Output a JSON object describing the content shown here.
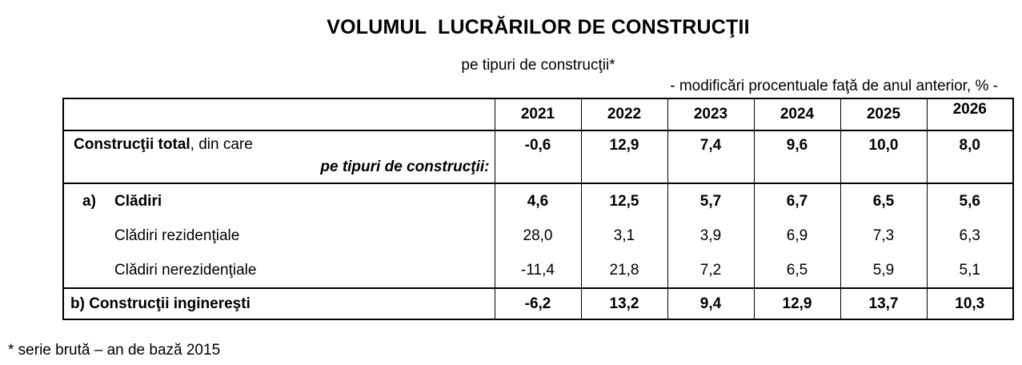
{
  "header": {
    "title": "VOLUMUL  LUCRĂRILOR DE CONSTRUCŢII",
    "subtitle": "pe tipuri de construcţii*",
    "unit_note": "- modificări procentuale faţă de anul anterior, % -"
  },
  "table": {
    "columns": [
      "2021",
      "2022",
      "2023",
      "2024",
      "2025",
      "2026"
    ],
    "rows": [
      {
        "label_bold": "Construcţii total",
        "label_rest": ", din care",
        "sub_label": "pe tipuri de construcţii:",
        "values": [
          "-0,6",
          "12,9",
          "7,4",
          "9,6",
          "10,0",
          "8,0"
        ]
      },
      {
        "prefix": "a)",
        "label": "Clădiri",
        "values": [
          "4,6",
          "12,5",
          "5,7",
          "6,7",
          "6,5",
          "5,6"
        ]
      },
      {
        "label": "Clădiri rezidenţiale",
        "values": [
          "28,0",
          "3,1",
          "3,9",
          "6,9",
          "7,3",
          "6,3"
        ]
      },
      {
        "label": "Clădiri nerezidenţiale",
        "values": [
          "-11,4",
          "21,8",
          "7,2",
          "6,5",
          "5,9",
          "5,1"
        ]
      },
      {
        "label": "b) Construcţii inginereşti",
        "values": [
          "-6,2",
          "13,2",
          "9,4",
          "12,9",
          "13,7",
          "10,3"
        ]
      }
    ]
  },
  "footnote": "* serie brută – an de bază 2015"
}
